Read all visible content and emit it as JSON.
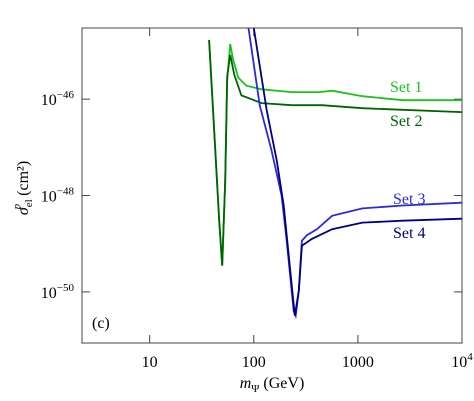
{
  "chart_data": {
    "type": "line",
    "log_x": true,
    "log_y": true,
    "x_label": {
      "main": "m",
      "sub": "Ψ",
      "unit": "(GeV)"
    },
    "y_label": {
      "symbol": "σ",
      "sub": "el",
      "sup": "p",
      "unit": "(cm²)"
    },
    "annotation": "(c)",
    "xlim": [
      2.24,
      10000
    ],
    "ylim": [
      8.7e-52,
      3e-45
    ],
    "xticks": [
      10,
      100,
      1000,
      {
        "value": 10000,
        "label": "10",
        "exponent": "4"
      }
    ],
    "yticks": [
      {
        "value": 1e-50,
        "label": "10",
        "exponent": "−50"
      },
      {
        "value": 1e-48,
        "label": "10",
        "exponent": "−48"
      },
      {
        "value": 1e-46,
        "label": "10",
        "exponent": "−46"
      }
    ],
    "series": [
      {
        "name": "Set 1",
        "color": "#1fbf1f",
        "x": [
          37.2,
          41.7,
          46.6,
          49.8,
          53.2,
          55.6,
          59.4,
          63.5,
          71.1,
          85,
          119,
          232,
          433,
          565,
          1104,
          2690,
          10000
        ],
        "values": [
          1.7e-45,
          2.2e-47,
          3e-49,
          3.5e-50,
          2e-48,
          2.5e-46,
          1.4e-45,
          6.5e-46,
          2.8e-46,
          1.9e-46,
          1.6e-46,
          1.4e-46,
          1.4e-46,
          1.5e-46,
          1.15e-46,
          9.5e-47,
          9.5e-47
        ]
      },
      {
        "name": "Set 2",
        "color": "#006400",
        "x": [
          37.2,
          41.7,
          46.6,
          49.8,
          53.2,
          55.6,
          59.4,
          65,
          76,
          119,
          232,
          452,
          1104,
          10000
        ],
        "values": [
          1.7e-45,
          2.2e-47,
          3e-49,
          3.5e-50,
          2e-48,
          3e-46,
          8.3e-46,
          3.2e-46,
          1.2e-46,
          8.3e-47,
          7.5e-47,
          7.5e-47,
          6.5e-47,
          5.4e-47
        ]
      },
      {
        "name": "Set 3",
        "color": "#2a2ad6",
        "x": [
          89,
          114,
          148,
          185,
          207,
          242,
          253,
          271,
          290,
          324,
          405,
          565,
          1104,
          2690,
          10000
        ],
        "values": [
          3e-45,
          7.5e-47,
          8.7e-48,
          1e-48,
          1.15e-49,
          4e-51,
          3.2e-51,
          1.05e-50,
          1.15e-49,
          1.5e-49,
          2e-49,
          3.8e-49,
          5.4e-49,
          6.2e-49,
          7.1e-49
        ]
      },
      {
        "name": "Set 4",
        "color": "#000080",
        "x": [
          100,
          133,
          166,
          194,
          248,
          271,
          290,
          362,
          565,
          1104,
          2690,
          10000
        ],
        "values": [
          3e-45,
          5.9e-47,
          5.4e-48,
          6.2e-49,
          3.2e-51,
          1.05e-50,
          9.1e-50,
          1.26e-49,
          2e-49,
          2.75e-49,
          3e-49,
          3.3e-49
        ]
      }
    ]
  }
}
